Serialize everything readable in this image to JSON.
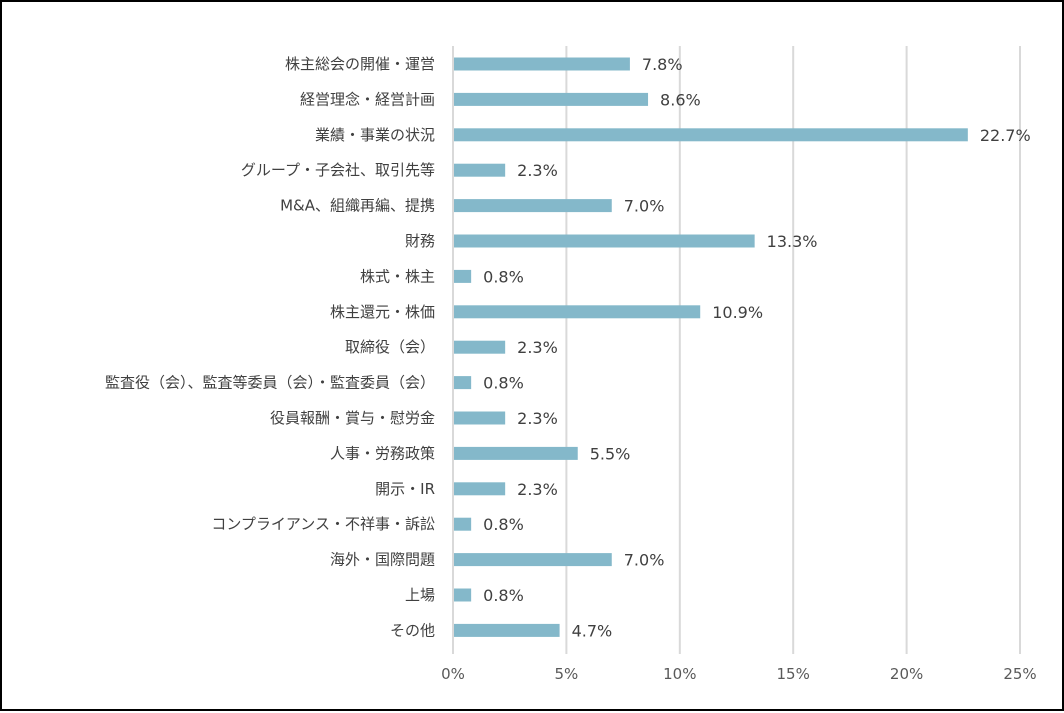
{
  "chart_data": {
    "type": "bar",
    "orientation": "horizontal",
    "title": "",
    "xlabel": "",
    "ylabel": "",
    "categories": [
      "株主総会の開催・運営",
      "経営理念・経営計画",
      "業績・事業の状況",
      "グループ・子会社、取引先等",
      "M&A、組織再編、提携",
      "財務",
      "株式・株主",
      "株主還元・株価",
      "取締役（会）",
      "監査役（会）、監査等委員（会）・監査委員（会）",
      "役員報酬・賞与・慰労金",
      "人事・労務政策",
      "開示・IR",
      "コンプライアンス・不祥事・訴訟",
      "海外・国際問題",
      "上場",
      "その他"
    ],
    "values": [
      7.8,
      8.6,
      22.7,
      2.3,
      7.0,
      13.3,
      0.8,
      10.9,
      2.3,
      0.8,
      2.3,
      5.5,
      2.3,
      0.8,
      7.0,
      0.8,
      4.7
    ],
    "value_labels": [
      "7.8%",
      "8.6%",
      "22.7%",
      "2.3%",
      "7.0%",
      "13.3%",
      "0.8%",
      "10.9%",
      "2.3%",
      "0.8%",
      "2.3%",
      "5.5%",
      "2.3%",
      "0.8%",
      "7.0%",
      "0.8%",
      "4.7%"
    ],
    "xlim": [
      0,
      25
    ],
    "x_ticks": [
      0,
      5,
      10,
      15,
      20,
      25
    ],
    "x_tick_labels": [
      "0%",
      "5%",
      "10%",
      "15%",
      "20%",
      "25%"
    ],
    "grid": "vertical",
    "legend": "none",
    "colors": {
      "bar": "#84B8CA",
      "grid": "#D9D9D9",
      "text": "#404040",
      "tick_text": "#595959",
      "border": "#000000"
    }
  }
}
